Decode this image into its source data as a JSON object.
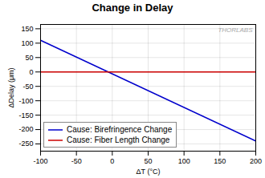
{
  "chart_data": {
    "type": "line",
    "title": "Change in Delay",
    "xlabel": "ΔT (°C)",
    "ylabel": "ΔDelay (μm)",
    "x": [
      -100,
      200
    ],
    "series": [
      {
        "name": "Cause: Birefringence Change",
        "color": "#0000cc",
        "values": [
          110,
          -240
        ]
      },
      {
        "name": "Cause: Fiber Length Change",
        "color": "#cc0000",
        "values": [
          0,
          0
        ]
      }
    ],
    "xlim": [
      -100,
      200
    ],
    "ylim": [
      -275,
      165
    ],
    "xticks": [
      -100,
      -50,
      0,
      50,
      100,
      150,
      200
    ],
    "yticks": [
      -250,
      -200,
      -150,
      -100,
      -50,
      0,
      50,
      100,
      150
    ],
    "grid": true,
    "legend": "lower left",
    "annotations": [
      "THORLABS"
    ]
  }
}
